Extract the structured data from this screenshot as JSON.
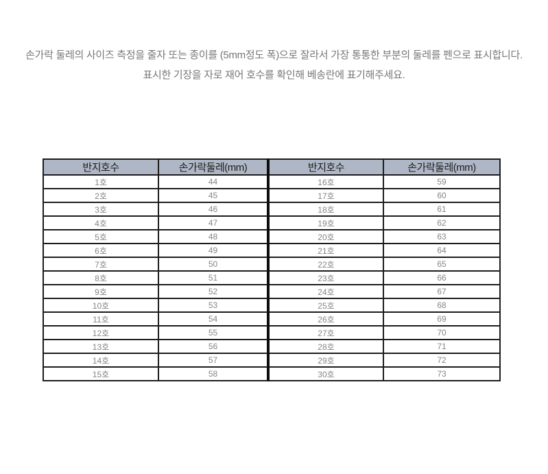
{
  "instructions": {
    "line1": "손가락 둘레의 사이즈 측정을 줄자 또는 종이를 (5mm정도 폭)으로 잘라서 가장 통통한 부분의 둘레를  펜으로 표시합니다.",
    "line2": "표시한 기장을 자로 재어 호수를 확인해 베송란에 표기해주세요."
  },
  "table": {
    "headers": [
      "반지호수",
      "손가락둘레(mm)",
      "반지호수",
      "손가락둘레(mm)"
    ],
    "rows": [
      [
        "1호",
        "44",
        "16호",
        "59"
      ],
      [
        "2호",
        "45",
        "17호",
        "60"
      ],
      [
        "3호",
        "46",
        "18호",
        "61"
      ],
      [
        "4호",
        "47",
        "19호",
        "62"
      ],
      [
        "5호",
        "48",
        "20호",
        "63"
      ],
      [
        "6호",
        "49",
        "21호",
        "64"
      ],
      [
        "7호",
        "50",
        "22호",
        "65"
      ],
      [
        "8호",
        "51",
        "23호",
        "66"
      ],
      [
        "9호",
        "52",
        "24호",
        "67"
      ],
      [
        "10호",
        "53",
        "25호",
        "68"
      ],
      [
        "11호",
        "54",
        "26호",
        "69"
      ],
      [
        "12호",
        "55",
        "27호",
        "70"
      ],
      [
        "13호",
        "56",
        "28호",
        "71"
      ],
      [
        "14호",
        "57",
        "29호",
        "72"
      ],
      [
        "15호",
        "58",
        "30호",
        "73"
      ]
    ]
  },
  "colors": {
    "header_bg": "#AFB7C6",
    "table_border": "#1c1c1c",
    "cell_text": "#858585",
    "instruction_text": "#777777"
  }
}
